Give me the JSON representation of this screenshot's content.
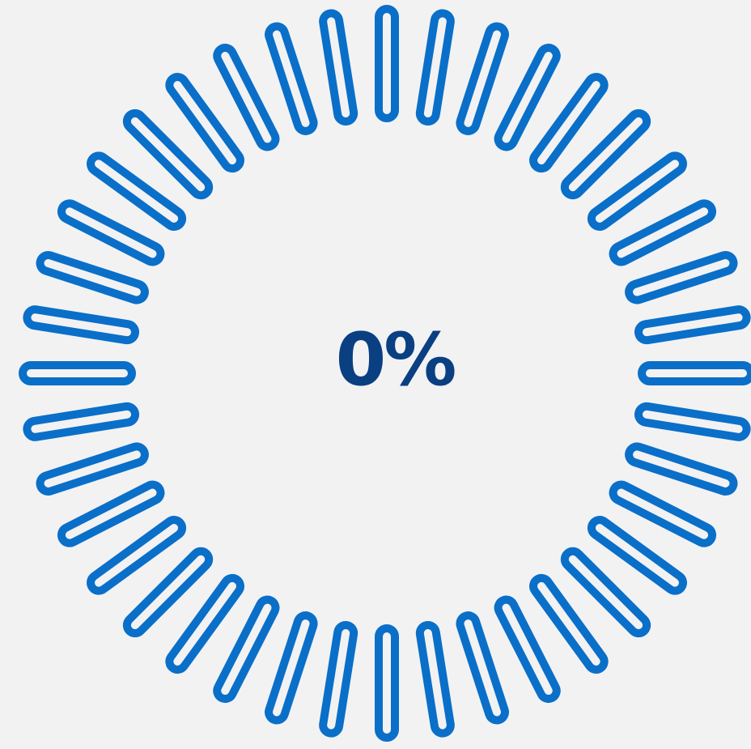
{
  "loader": {
    "progress_text": "0%",
    "progress": 0,
    "tick_count": 40,
    "tick_color": "#0a6fc8",
    "text_color": "#0a3f82",
    "background": "#f2f2f3"
  }
}
